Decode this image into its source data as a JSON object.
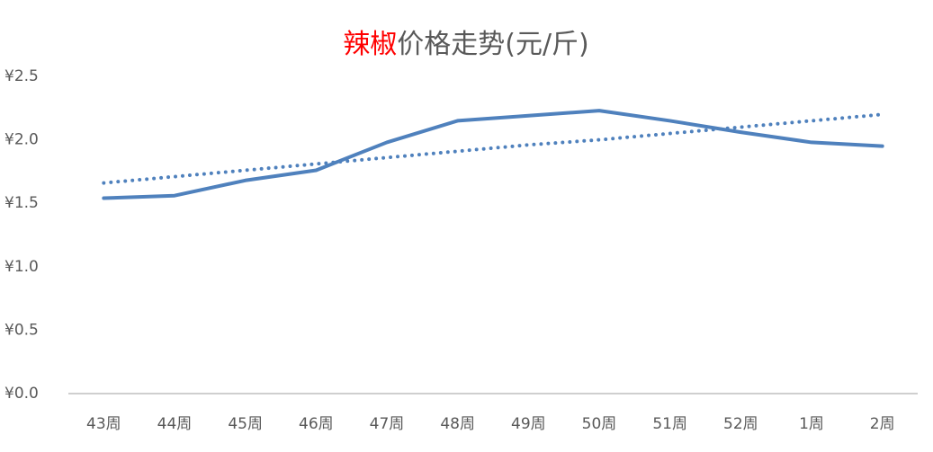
{
  "chart_data": {
    "type": "line",
    "title_prefix": "辣椒",
    "title_prefix_color": "#ff0000",
    "title": "价格走势(元/斤)",
    "categories": [
      "43周",
      "44周",
      "45周",
      "46周",
      "47周",
      "48周",
      "49周",
      "50周",
      "51周",
      "52周",
      "1周",
      "2周"
    ],
    "series": [
      {
        "color": "#4f81bd",
        "style": "solid",
        "values": [
          1.54,
          1.56,
          1.68,
          1.76,
          1.98,
          2.15,
          2.19,
          2.23,
          2.15,
          2.06,
          1.98,
          1.95
        ]
      },
      {
        "color": "#4f81bd",
        "style": "dotted",
        "values": [
          1.66,
          1.71,
          1.76,
          1.81,
          1.86,
          1.91,
          1.96,
          2.0,
          2.05,
          2.1,
          2.15,
          2.2
        ]
      }
    ],
    "ylim": [
      0,
      2.5
    ],
    "yticks": [
      {
        "value": 0,
        "label": "¥0.0"
      },
      {
        "value": 0.5,
        "label": "¥0.5"
      },
      {
        "value": 1,
        "label": "¥1.0"
      },
      {
        "value": 1.5,
        "label": "¥1.5"
      },
      {
        "value": 2,
        "label": "¥2.0"
      },
      {
        "value": 2.5,
        "label": "¥2.5"
      }
    ],
    "grid": false
  }
}
